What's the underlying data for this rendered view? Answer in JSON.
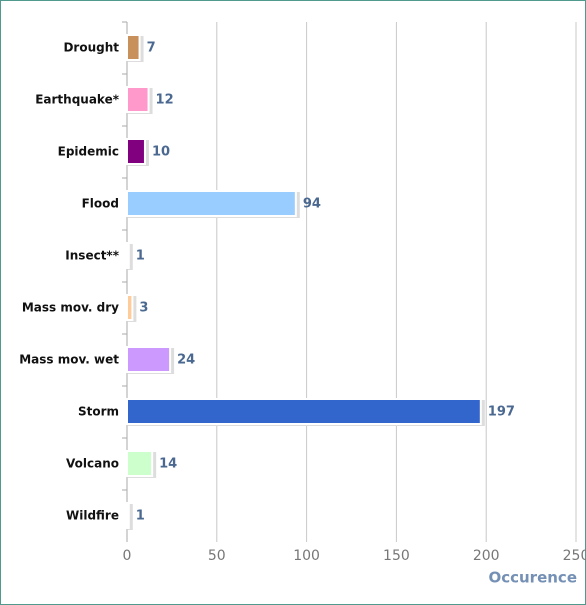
{
  "chart_data": {
    "type": "bar",
    "orientation": "horizontal",
    "categories": [
      "Drought",
      "Earthquake*",
      "Epidemic",
      "Flood",
      "Insect**",
      "Mass mov. dry",
      "Mass mov. wet",
      "Storm",
      "Volcano",
      "Wildfire"
    ],
    "values": [
      7,
      12,
      10,
      94,
      1,
      3,
      24,
      197,
      14,
      1
    ],
    "colors": [
      "#c8905a",
      "#ff99cc",
      "#800080",
      "#99ccff",
      "#ccccdd",
      "#ffcc99",
      "#cc99ff",
      "#3366cc",
      "#ccffcc",
      "#ffccbb"
    ],
    "xlim": [
      0,
      250
    ],
    "xticks": [
      0,
      50,
      100,
      150,
      200,
      250
    ],
    "x_label": "Occurence",
    "grid": true
  }
}
